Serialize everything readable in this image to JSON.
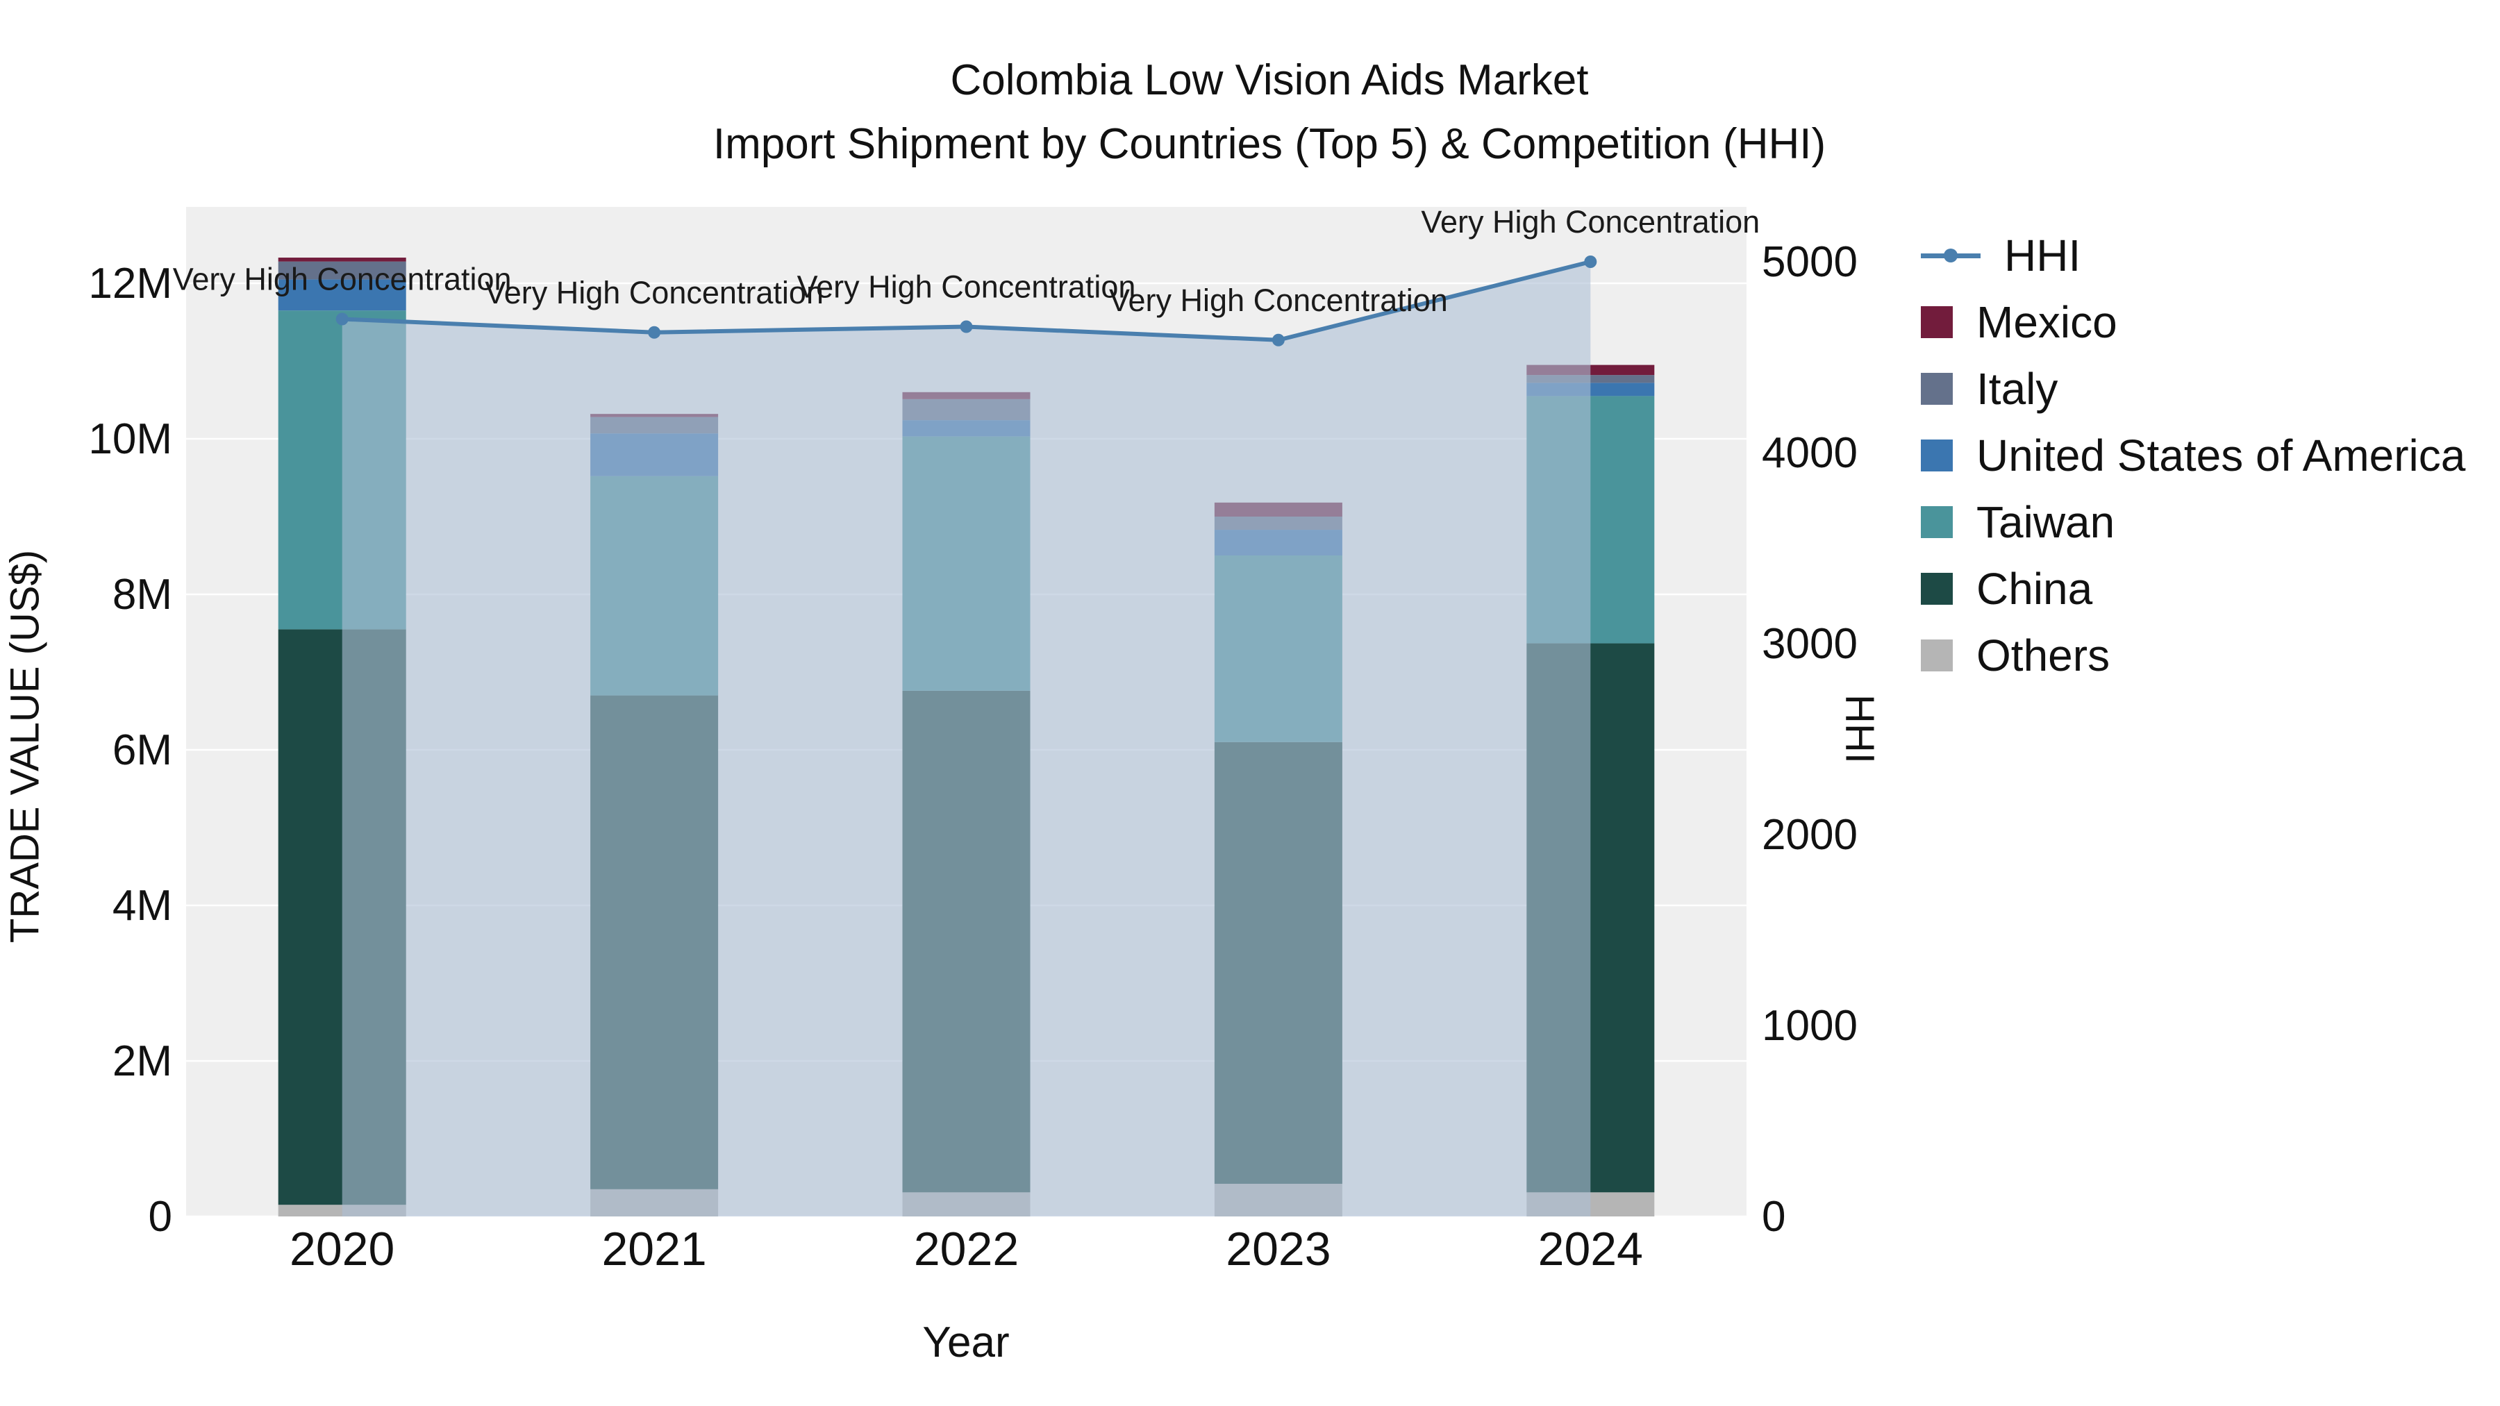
{
  "title": {
    "line1": "Colombia Low Vision Aids Market",
    "line2": "Import Shipment by Countries (Top 5) & Competition (HHI)"
  },
  "axes": {
    "x_label": "Year",
    "y_left_label": "TRADE VALUE (US$)",
    "y_right_label": "HHI",
    "y_left_ticks": [
      "0",
      "2M",
      "4M",
      "6M",
      "8M",
      "10M",
      "12M"
    ],
    "y_right_ticks": [
      "0",
      "1000",
      "2000",
      "3000",
      "4000",
      "5000"
    ]
  },
  "legend": {
    "items": [
      {
        "label": "HHI",
        "marker": "line",
        "color": "#4a7fae"
      },
      {
        "label": "Mexico",
        "marker": "square",
        "color": "#721c3c"
      },
      {
        "label": "Italy",
        "marker": "square",
        "color": "#64718b"
      },
      {
        "label": "United States of America",
        "marker": "square",
        "color": "#3b76b0"
      },
      {
        "label": "Taiwan",
        "marker": "square",
        "color": "#4a949b"
      },
      {
        "label": "China",
        "marker": "square",
        "color": "#1d4a45"
      },
      {
        "label": "Others",
        "marker": "square",
        "color": "#b5b5b5"
      }
    ]
  },
  "chart_data": {
    "type": "bar",
    "subtype": "stacked-bars-with-line-overlay",
    "title": "Colombia Low Vision Aids Market — Import Shipment by Countries (Top 5) & Competition (HHI)",
    "categories": [
      "2020",
      "2021",
      "2022",
      "2023",
      "2024"
    ],
    "series": [
      {
        "name": "Others",
        "color": "#b5b5b5",
        "values": [
          150000,
          350000,
          310000,
          420000,
          310000
        ]
      },
      {
        "name": "China",
        "color": "#1d4a45",
        "values": [
          7400000,
          6350000,
          6450000,
          5680000,
          7060000
        ]
      },
      {
        "name": "Taiwan",
        "color": "#4a949b",
        "values": [
          4100000,
          2820000,
          3270000,
          2400000,
          3180000
        ]
      },
      {
        "name": "United States of America",
        "color": "#3b76b0",
        "values": [
          400000,
          550000,
          210000,
          330000,
          170000
        ]
      },
      {
        "name": "Italy",
        "color": "#64718b",
        "values": [
          230000,
          210000,
          270000,
          170000,
          100000
        ]
      },
      {
        "name": "Mexico",
        "color": "#721c3c",
        "values": [
          50000,
          40000,
          90000,
          180000,
          130000
        ]
      }
    ],
    "line_series": {
      "name": "HHI",
      "axis": "right",
      "color": "#4a7fae",
      "area_fill": true,
      "area_color": "#aec0d6",
      "area_opacity": 0.6,
      "values": [
        4700,
        4630,
        4660,
        4590,
        5000
      ]
    },
    "annotations": [
      {
        "category": "2020",
        "text": "Very High Concentration"
      },
      {
        "category": "2021",
        "text": "Very High Concentration"
      },
      {
        "category": "2022",
        "text": "Very High Concentration"
      },
      {
        "category": "2023",
        "text": "Very High Concentration"
      },
      {
        "category": "2024",
        "text": "Very High Concentration"
      }
    ],
    "xlabel": "Year",
    "ylabel_left": "TRADE VALUE (US$)",
    "ylabel_right": "HHI",
    "y_left": {
      "min": 0,
      "max": 12000000,
      "tick_step": 2000000
    },
    "y_right": {
      "min": 0,
      "max": 5000,
      "tick_step": 1000
    },
    "grid": true,
    "legend_position": "right",
    "plot_bg": "#efefef"
  }
}
